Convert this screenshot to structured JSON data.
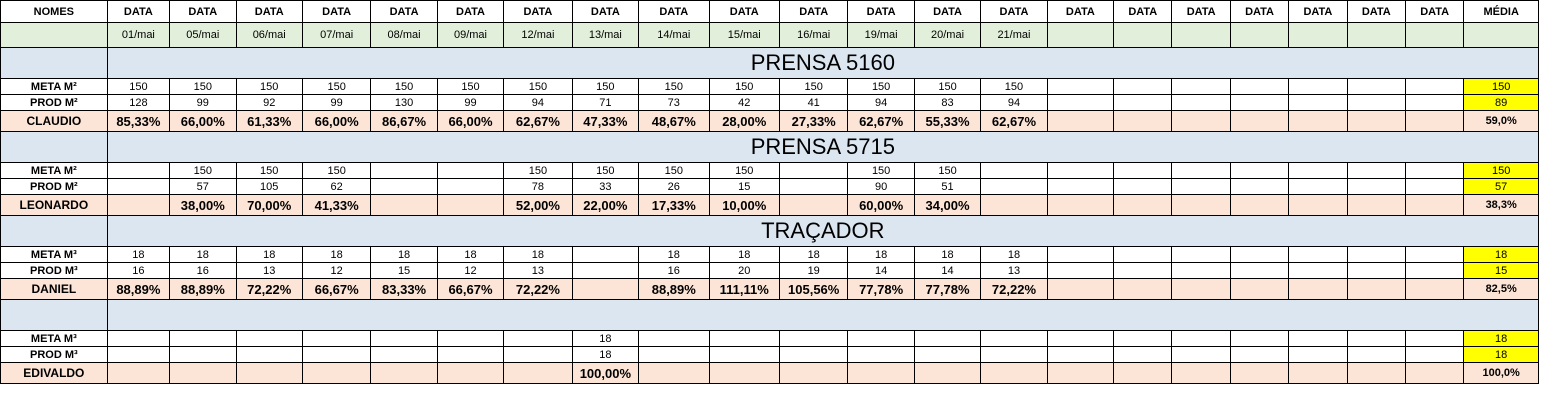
{
  "header": {
    "names_label": "NOMES",
    "date_labels": [
      "DATA",
      "DATA",
      "DATA",
      "DATA",
      "DATA",
      "DATA",
      "DATA",
      "DATA",
      "DATA",
      "DATA",
      "DATA",
      "DATA",
      "DATA",
      "DATA",
      "DATA",
      "DATA",
      "DATA",
      "DATA",
      "DATA",
      "DATA",
      "DATA"
    ],
    "average_label": "MÉDIA",
    "dates": [
      "01/mai",
      "05/mai",
      "06/mai",
      "07/mai",
      "08/mai",
      "09/mai",
      "12/mai",
      "13/mai",
      "14/mai",
      "15/mai",
      "16/mai",
      "19/mai",
      "20/mai",
      "21/mai",
      "",
      "",
      "",
      "",
      "",
      "",
      ""
    ]
  },
  "sections": [
    {
      "title": "PRENSA 5160",
      "meta_label": "META M²",
      "prod_label": "PROD M²",
      "person": "CLAUDIO",
      "meta": [
        "150",
        "150",
        "150",
        "150",
        "150",
        "150",
        "150",
        "150",
        "150",
        "150",
        "150",
        "150",
        "150",
        "150",
        "",
        "",
        "",
        "",
        "",
        "",
        ""
      ],
      "prod": [
        "128",
        "99",
        "92",
        "99",
        "130",
        "99",
        "94",
        "71",
        "73",
        "42",
        "41",
        "94",
        "83",
        "94",
        "",
        "",
        "",
        "",
        "",
        "",
        ""
      ],
      "pct": [
        "85,33%",
        "66,00%",
        "61,33%",
        "66,00%",
        "86,67%",
        "66,00%",
        "62,67%",
        "47,33%",
        "48,67%",
        "28,00%",
        "27,33%",
        "62,67%",
        "55,33%",
        "62,67%",
        "",
        "",
        "",
        "",
        "",
        "",
        ""
      ],
      "meta_avg": "150",
      "prod_avg": "89",
      "pct_avg": "59,0%"
    },
    {
      "title": "PRENSA 5715",
      "meta_label": "META M²",
      "prod_label": "PROD M²",
      "person": "LEONARDO",
      "meta": [
        "",
        "150",
        "150",
        "150",
        "",
        "",
        "150",
        "150",
        "150",
        "150",
        "",
        "150",
        "150",
        "",
        "",
        "",
        "",
        "",
        "",
        "",
        ""
      ],
      "prod": [
        "",
        "57",
        "105",
        "62",
        "",
        "",
        "78",
        "33",
        "26",
        "15",
        "",
        "90",
        "51",
        "",
        "",
        "",
        "",
        "",
        "",
        "",
        ""
      ],
      "pct": [
        "",
        "38,00%",
        "70,00%",
        "41,33%",
        "",
        "",
        "52,00%",
        "22,00%",
        "17,33%",
        "10,00%",
        "",
        "60,00%",
        "34,00%",
        "",
        "",
        "",
        "",
        "",
        "",
        "",
        ""
      ],
      "meta_avg": "150",
      "prod_avg": "57",
      "pct_avg": "38,3%"
    },
    {
      "title": "TRAÇADOR",
      "meta_label": "META M³",
      "prod_label": "PROD M³",
      "person": "DANIEL",
      "meta": [
        "18",
        "18",
        "18",
        "18",
        "18",
        "18",
        "18",
        "",
        "18",
        "18",
        "18",
        "18",
        "18",
        "18",
        "",
        "",
        "",
        "",
        "",
        "",
        ""
      ],
      "prod": [
        "16",
        "16",
        "13",
        "12",
        "15",
        "12",
        "13",
        "",
        "16",
        "20",
        "19",
        "14",
        "14",
        "13",
        "",
        "",
        "",
        "",
        "",
        "",
        ""
      ],
      "pct": [
        "88,89%",
        "88,89%",
        "72,22%",
        "66,67%",
        "83,33%",
        "66,67%",
        "72,22%",
        "",
        "88,89%",
        "111,11%",
        "105,56%",
        "77,78%",
        "77,78%",
        "72,22%",
        "",
        "",
        "",
        "",
        "",
        "",
        ""
      ],
      "meta_avg": "18",
      "prod_avg": "15",
      "pct_avg": "82,5%"
    },
    {
      "title": "",
      "meta_label": "META M³",
      "prod_label": "PROD M³",
      "person": "EDIVALDO",
      "meta": [
        "",
        "",
        "",
        "",
        "",
        "",
        "",
        "18",
        "",
        "",
        "",
        "",
        "",
        "",
        "",
        "",
        "",
        "",
        "",
        "",
        ""
      ],
      "prod": [
        "",
        "",
        "",
        "",
        "",
        "",
        "",
        "18",
        "",
        "",
        "",
        "",
        "",
        "",
        "",
        "",
        "",
        "",
        "",
        "",
        ""
      ],
      "pct": [
        "",
        "",
        "",
        "",
        "",
        "",
        "",
        "100,00%",
        "",
        "",
        "",
        "",
        "",
        "",
        "",
        "",
        "",
        "",
        "",
        "",
        ""
      ],
      "meta_avg": "18",
      "prod_avg": "18",
      "pct_avg": "100,0%"
    }
  ]
}
